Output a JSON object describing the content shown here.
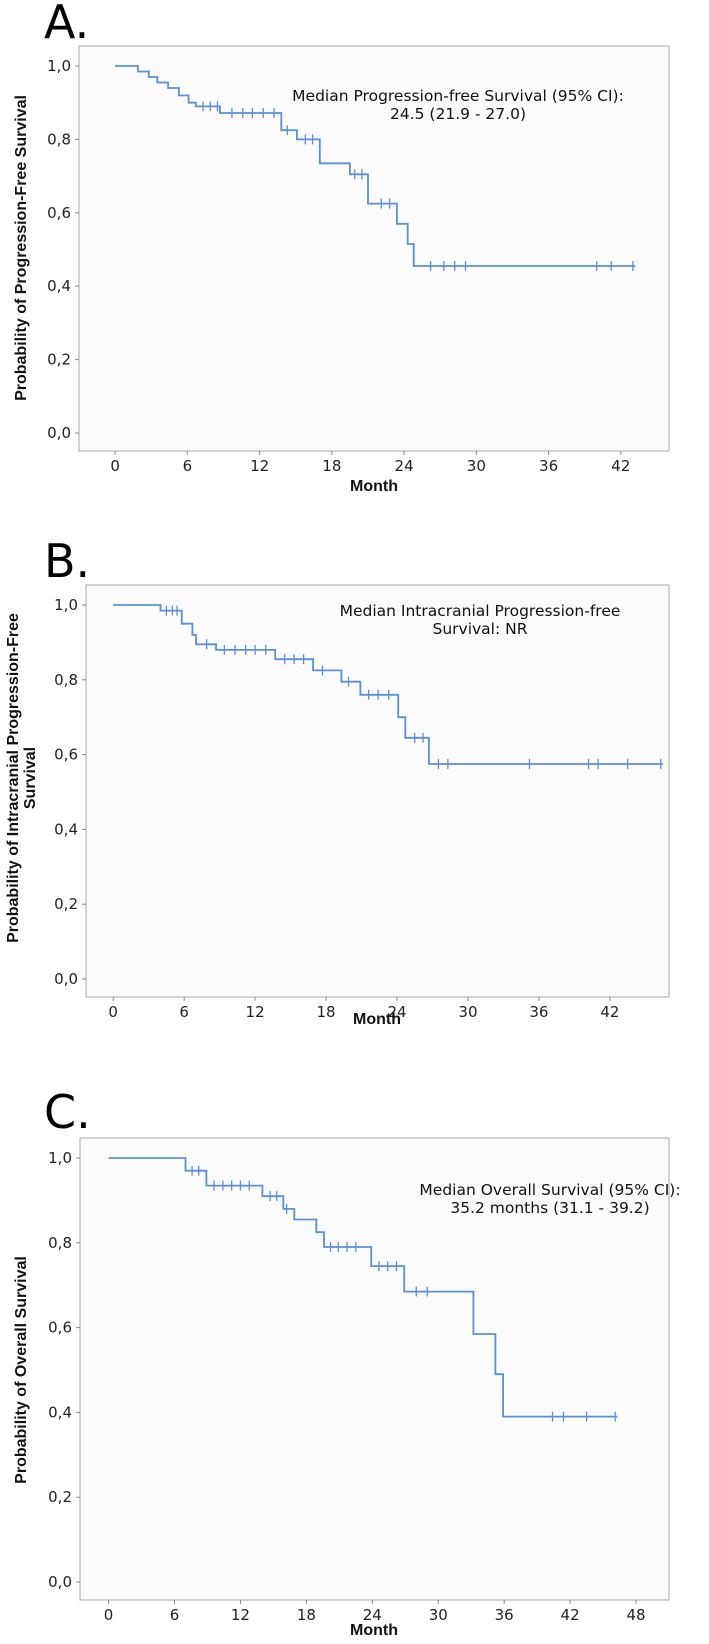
{
  "chart_data": [
    {
      "type": "line",
      "subtype": "kaplan-meier",
      "panel_label": "A.",
      "ylabel": "Probability of Progression-Free Survival",
      "ylabel_lines": [
        "Probability of Progression-Free Survival"
      ],
      "xlabel": "Month",
      "xlim": [
        -3,
        46
      ],
      "ylim": [
        0,
        1.0
      ],
      "xticks": [
        "0",
        "6",
        "12",
        "18",
        "24",
        "30",
        "36",
        "42"
      ],
      "xtick_values": [
        0,
        6,
        12,
        18,
        24,
        30,
        36,
        42
      ],
      "yticks": [
        "0,0",
        "0,2",
        "0,4",
        "0,6",
        "0,8",
        "1,0"
      ],
      "ytick_values": [
        0,
        0.2,
        0.4,
        0.6,
        0.8,
        1.0
      ],
      "annotation_lines": [
        "Median Progression-free Survival (95% CI):",
        "24.5 (21.9 - 27.0)"
      ],
      "color": "#5b8fd9",
      "steps": [
        [
          0,
          1.0
        ],
        [
          1.9,
          0.985
        ],
        [
          2.8,
          0.97
        ],
        [
          3.5,
          0.955
        ],
        [
          4.4,
          0.94
        ],
        [
          5.3,
          0.92
        ],
        [
          6.1,
          0.9
        ],
        [
          6.7,
          0.89
        ],
        [
          8.7,
          0.872
        ],
        [
          13.8,
          0.825
        ],
        [
          15.1,
          0.8
        ],
        [
          17.0,
          0.735
        ],
        [
          19.5,
          0.705
        ],
        [
          21.0,
          0.625
        ],
        [
          23.4,
          0.57
        ],
        [
          24.3,
          0.515
        ],
        [
          24.8,
          0.455
        ],
        [
          43.2,
          0.455
        ]
      ],
      "censors": [
        [
          7.3,
          0.89
        ],
        [
          7.9,
          0.89
        ],
        [
          8.5,
          0.89
        ],
        [
          9.7,
          0.872
        ],
        [
          10.6,
          0.872
        ],
        [
          11.4,
          0.872
        ],
        [
          12.3,
          0.872
        ],
        [
          13.2,
          0.872
        ],
        [
          14.3,
          0.825
        ],
        [
          15.8,
          0.8
        ],
        [
          16.4,
          0.8
        ],
        [
          19.9,
          0.705
        ],
        [
          20.5,
          0.705
        ],
        [
          22.1,
          0.625
        ],
        [
          22.8,
          0.625
        ],
        [
          26.2,
          0.455
        ],
        [
          27.3,
          0.455
        ],
        [
          28.2,
          0.455
        ],
        [
          29.1,
          0.455
        ],
        [
          40.0,
          0.455
        ],
        [
          41.2,
          0.455
        ],
        [
          43.0,
          0.455
        ]
      ]
    },
    {
      "type": "line",
      "subtype": "kaplan-meier",
      "panel_label": "B.",
      "ylabel": "Probability of Intracranial Progression-Free Survival",
      "ylabel_lines": [
        "Probability of Intracranial Progression-Free",
        "Survival"
      ],
      "xlabel": "Month",
      "xlim": [
        -2.3,
        47
      ],
      "ylim": [
        0,
        1.0
      ],
      "xticks": [
        "0",
        "6",
        "12",
        "18",
        "24",
        "30",
        "36",
        "42"
      ],
      "xtick_values": [
        0,
        6,
        12,
        18,
        24,
        30,
        36,
        42
      ],
      "yticks": [
        "0,0",
        "0,2",
        "0,4",
        "0,6",
        "0,8",
        "1,0"
      ],
      "ytick_values": [
        0,
        0.2,
        0.4,
        0.6,
        0.8,
        1.0
      ],
      "annotation_lines": [
        "Median Intracranial Progression-free",
        "Survival: NR"
      ],
      "color": "#5b8fd9",
      "steps": [
        [
          0,
          1.0
        ],
        [
          4.0,
          0.985
        ],
        [
          5.8,
          0.95
        ],
        [
          6.7,
          0.92
        ],
        [
          7.0,
          0.895
        ],
        [
          8.7,
          0.88
        ],
        [
          13.7,
          0.855
        ],
        [
          16.9,
          0.825
        ],
        [
          19.3,
          0.795
        ],
        [
          20.9,
          0.76
        ],
        [
          24.1,
          0.7
        ],
        [
          24.7,
          0.645
        ],
        [
          26.7,
          0.575
        ],
        [
          46.5,
          0.575
        ]
      ],
      "censors": [
        [
          4.5,
          0.985
        ],
        [
          5.0,
          0.985
        ],
        [
          5.4,
          0.985
        ],
        [
          7.9,
          0.895
        ],
        [
          9.4,
          0.88
        ],
        [
          10.3,
          0.88
        ],
        [
          11.2,
          0.88
        ],
        [
          12.0,
          0.88
        ],
        [
          12.9,
          0.88
        ],
        [
          14.5,
          0.855
        ],
        [
          15.3,
          0.855
        ],
        [
          16.1,
          0.855
        ],
        [
          17.7,
          0.825
        ],
        [
          19.9,
          0.795
        ],
        [
          21.6,
          0.76
        ],
        [
          22.4,
          0.76
        ],
        [
          23.3,
          0.76
        ],
        [
          25.5,
          0.645
        ],
        [
          26.2,
          0.645
        ],
        [
          27.5,
          0.575
        ],
        [
          28.3,
          0.575
        ],
        [
          35.2,
          0.575
        ],
        [
          40.2,
          0.575
        ],
        [
          41.0,
          0.575
        ],
        [
          43.5,
          0.575
        ],
        [
          46.3,
          0.575
        ]
      ]
    },
    {
      "type": "line",
      "subtype": "kaplan-meier",
      "panel_label": "C.",
      "ylabel": "Probability of Overall Survival",
      "ylabel_lines": [
        "Probability of Overall Survival"
      ],
      "xlabel": "Month",
      "xlim": [
        -2.6,
        51
      ],
      "ylim": [
        0,
        1.0
      ],
      "xticks": [
        "0",
        "6",
        "12",
        "18",
        "24",
        "30",
        "36",
        "42",
        "48"
      ],
      "xtick_values": [
        0,
        6,
        12,
        18,
        24,
        30,
        36,
        42,
        48
      ],
      "yticks": [
        "0,0",
        "0,2",
        "0,4",
        "0,6",
        "0,8",
        "1,0"
      ],
      "ytick_values": [
        0,
        0.2,
        0.4,
        0.6,
        0.8,
        1.0
      ],
      "annotation_lines": [
        "Median Overall Survival (95% CI):",
        "35.2 months (31.1 - 39.2)"
      ],
      "color": "#5b8fd9",
      "steps": [
        [
          0,
          1.0
        ],
        [
          7.0,
          0.97
        ],
        [
          8.9,
          0.935
        ],
        [
          14.0,
          0.91
        ],
        [
          15.9,
          0.88
        ],
        [
          16.9,
          0.855
        ],
        [
          18.9,
          0.825
        ],
        [
          19.6,
          0.79
        ],
        [
          23.9,
          0.745
        ],
        [
          26.9,
          0.685
        ],
        [
          33.2,
          0.585
        ],
        [
          35.2,
          0.49
        ],
        [
          35.9,
          0.39
        ],
        [
          46.3,
          0.39
        ]
      ],
      "censors": [
        [
          7.6,
          0.97
        ],
        [
          8.2,
          0.97
        ],
        [
          9.6,
          0.935
        ],
        [
          10.4,
          0.935
        ],
        [
          11.2,
          0.935
        ],
        [
          12.0,
          0.935
        ],
        [
          12.8,
          0.935
        ],
        [
          14.7,
          0.91
        ],
        [
          15.3,
          0.91
        ],
        [
          16.2,
          0.88
        ],
        [
          20.2,
          0.79
        ],
        [
          20.9,
          0.79
        ],
        [
          21.7,
          0.79
        ],
        [
          22.5,
          0.79
        ],
        [
          24.6,
          0.745
        ],
        [
          25.4,
          0.745
        ],
        [
          26.2,
          0.745
        ],
        [
          28.0,
          0.685
        ],
        [
          29.0,
          0.685
        ],
        [
          40.4,
          0.39
        ],
        [
          41.4,
          0.39
        ],
        [
          43.5,
          0.39
        ],
        [
          46.1,
          0.39
        ]
      ]
    }
  ]
}
